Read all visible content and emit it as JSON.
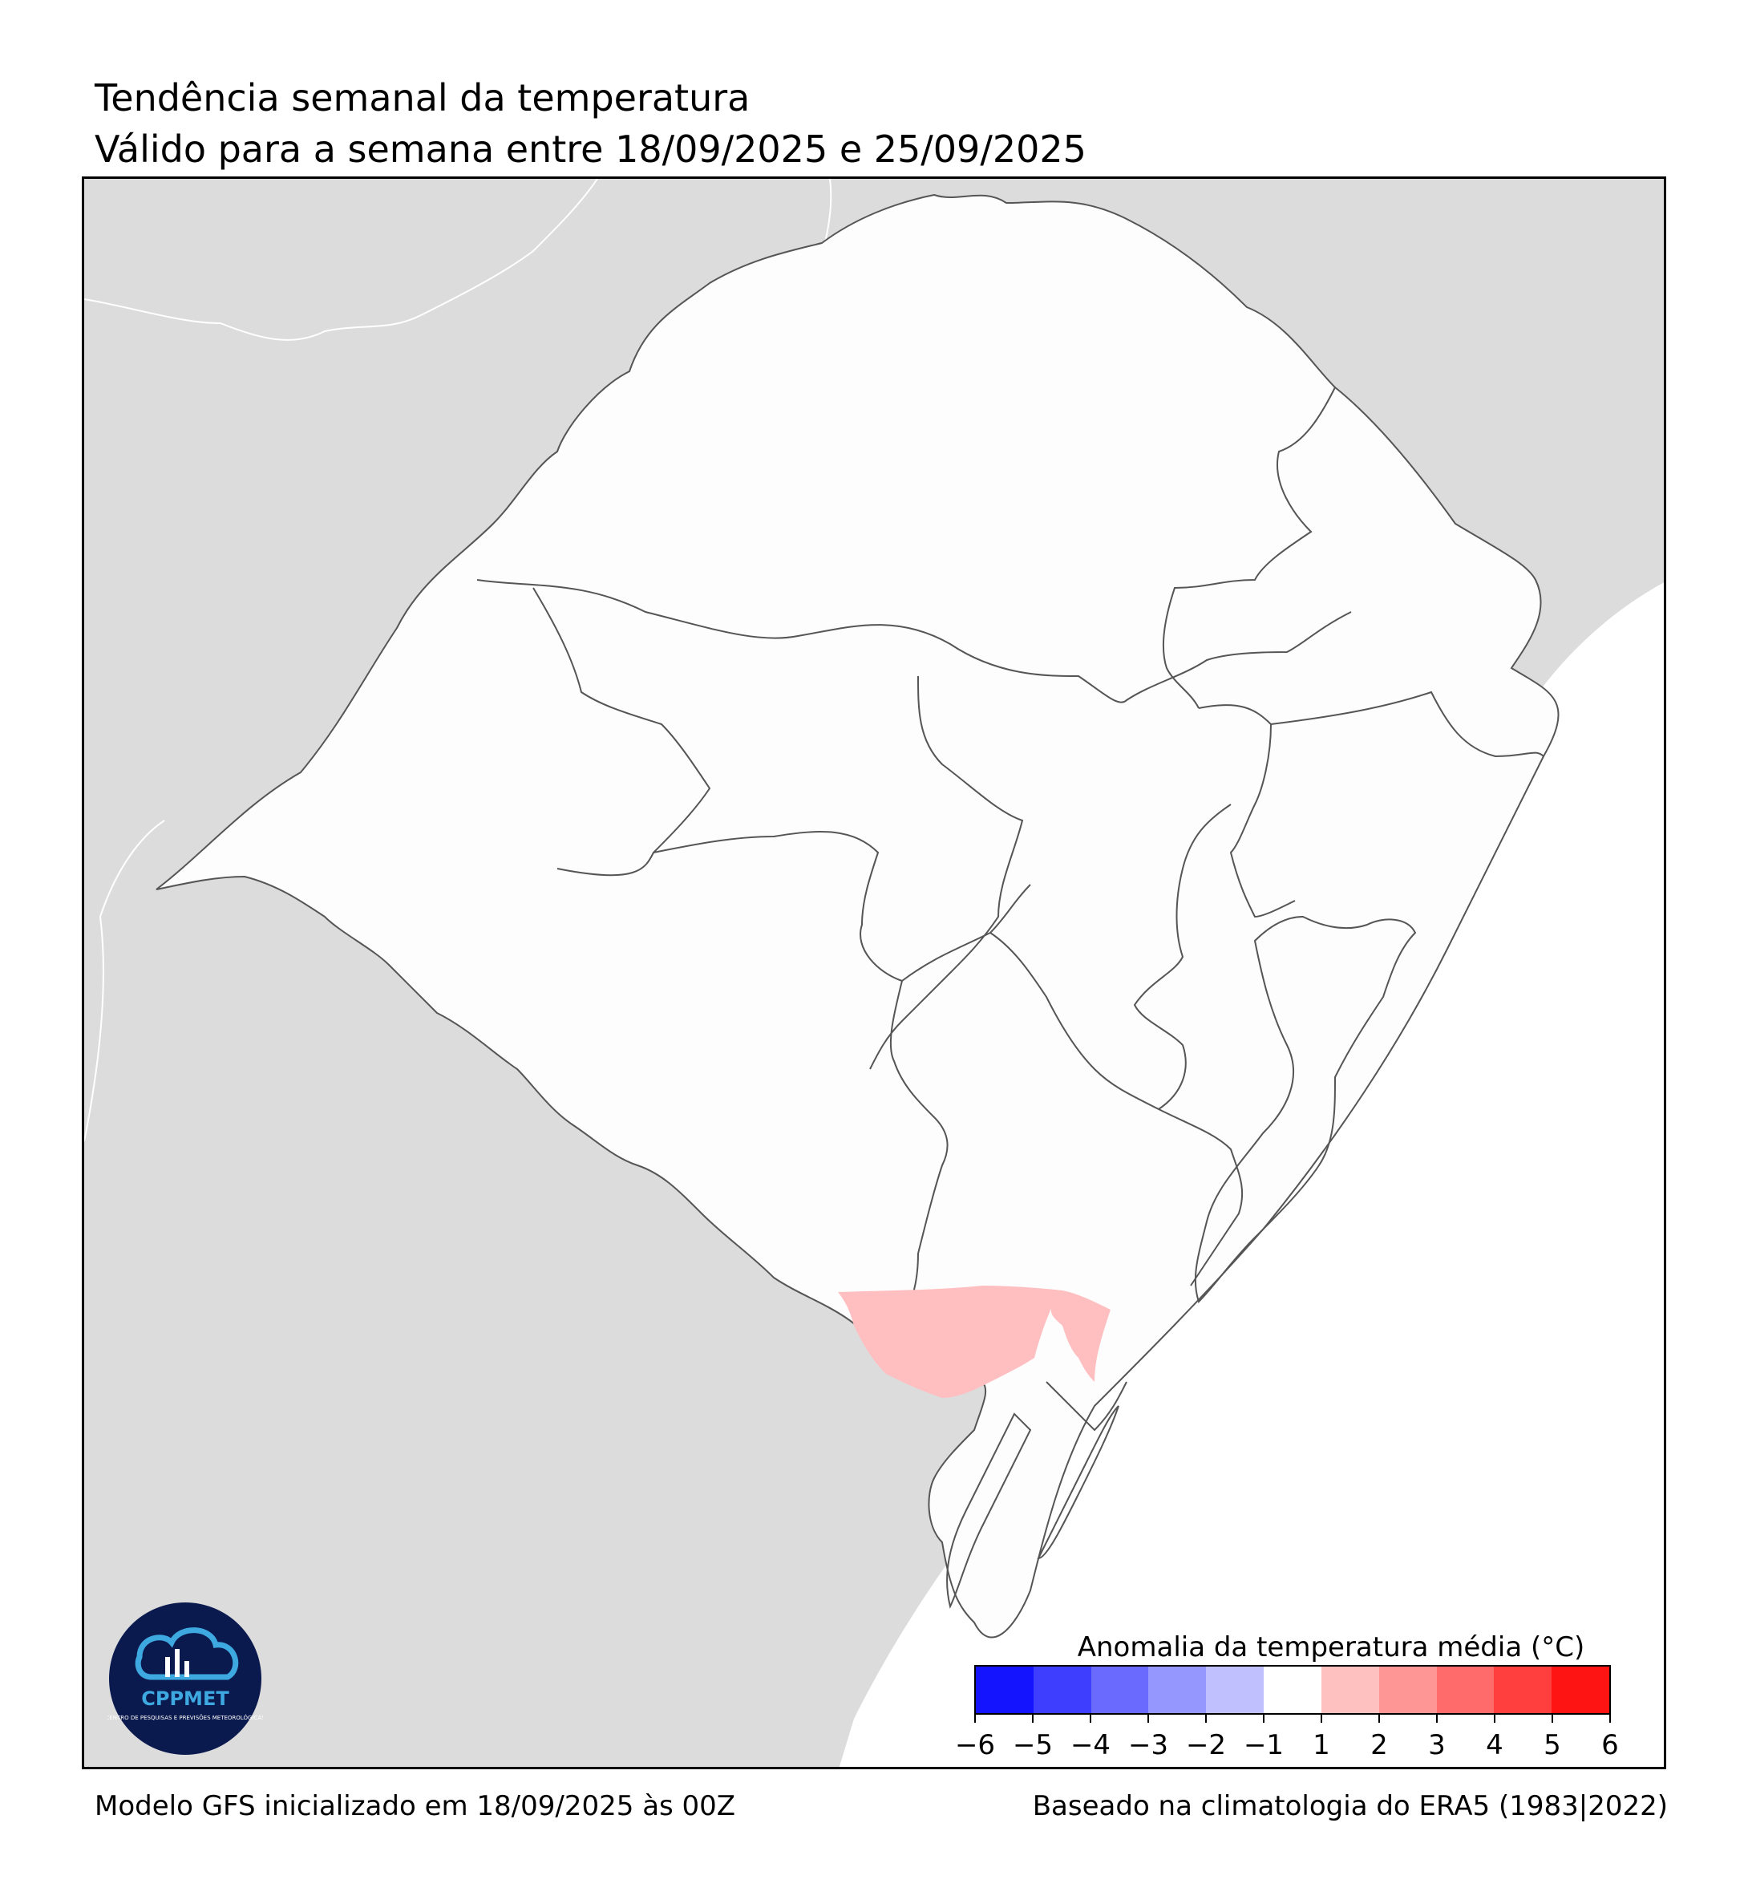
{
  "title": "Tendência semanal da temperatura",
  "subtitle": "Válido para a semana entre 18/09/2025 e 25/09/2025",
  "footer": {
    "model": "Modelo GFS inicializado em 18/09/2025 às 00Z",
    "climatology": "Baseado na climatologia do ERA5 (1983|2022)"
  },
  "logo": {
    "name": "CPPMET",
    "subtext": "CENTRO DE PESQUISAS E PREVISÕES METEOROLÓGICAS"
  },
  "legend": {
    "title": "Anomalia da temperatura média (°C)",
    "ticks": [
      "−6",
      "−5",
      "−4",
      "−3",
      "−2",
      "−1",
      "1",
      "2",
      "3",
      "4",
      "5",
      "6"
    ],
    "colors": [
      "#1414ff",
      "#3e3eff",
      "#6a6aff",
      "#9696ff",
      "#c0c0ff",
      "#ffffff",
      "#ffc0c0",
      "#ff9696",
      "#ff6a6a",
      "#ff3e3e",
      "#ff1414"
    ]
  },
  "map": {
    "land_color": "#dcdcdc",
    "state_color": "#fdfdfd",
    "anomaly_color": "#ffbfc1",
    "anomaly_value_range": [
      1,
      2
    ],
    "border_color": "#555555"
  }
}
